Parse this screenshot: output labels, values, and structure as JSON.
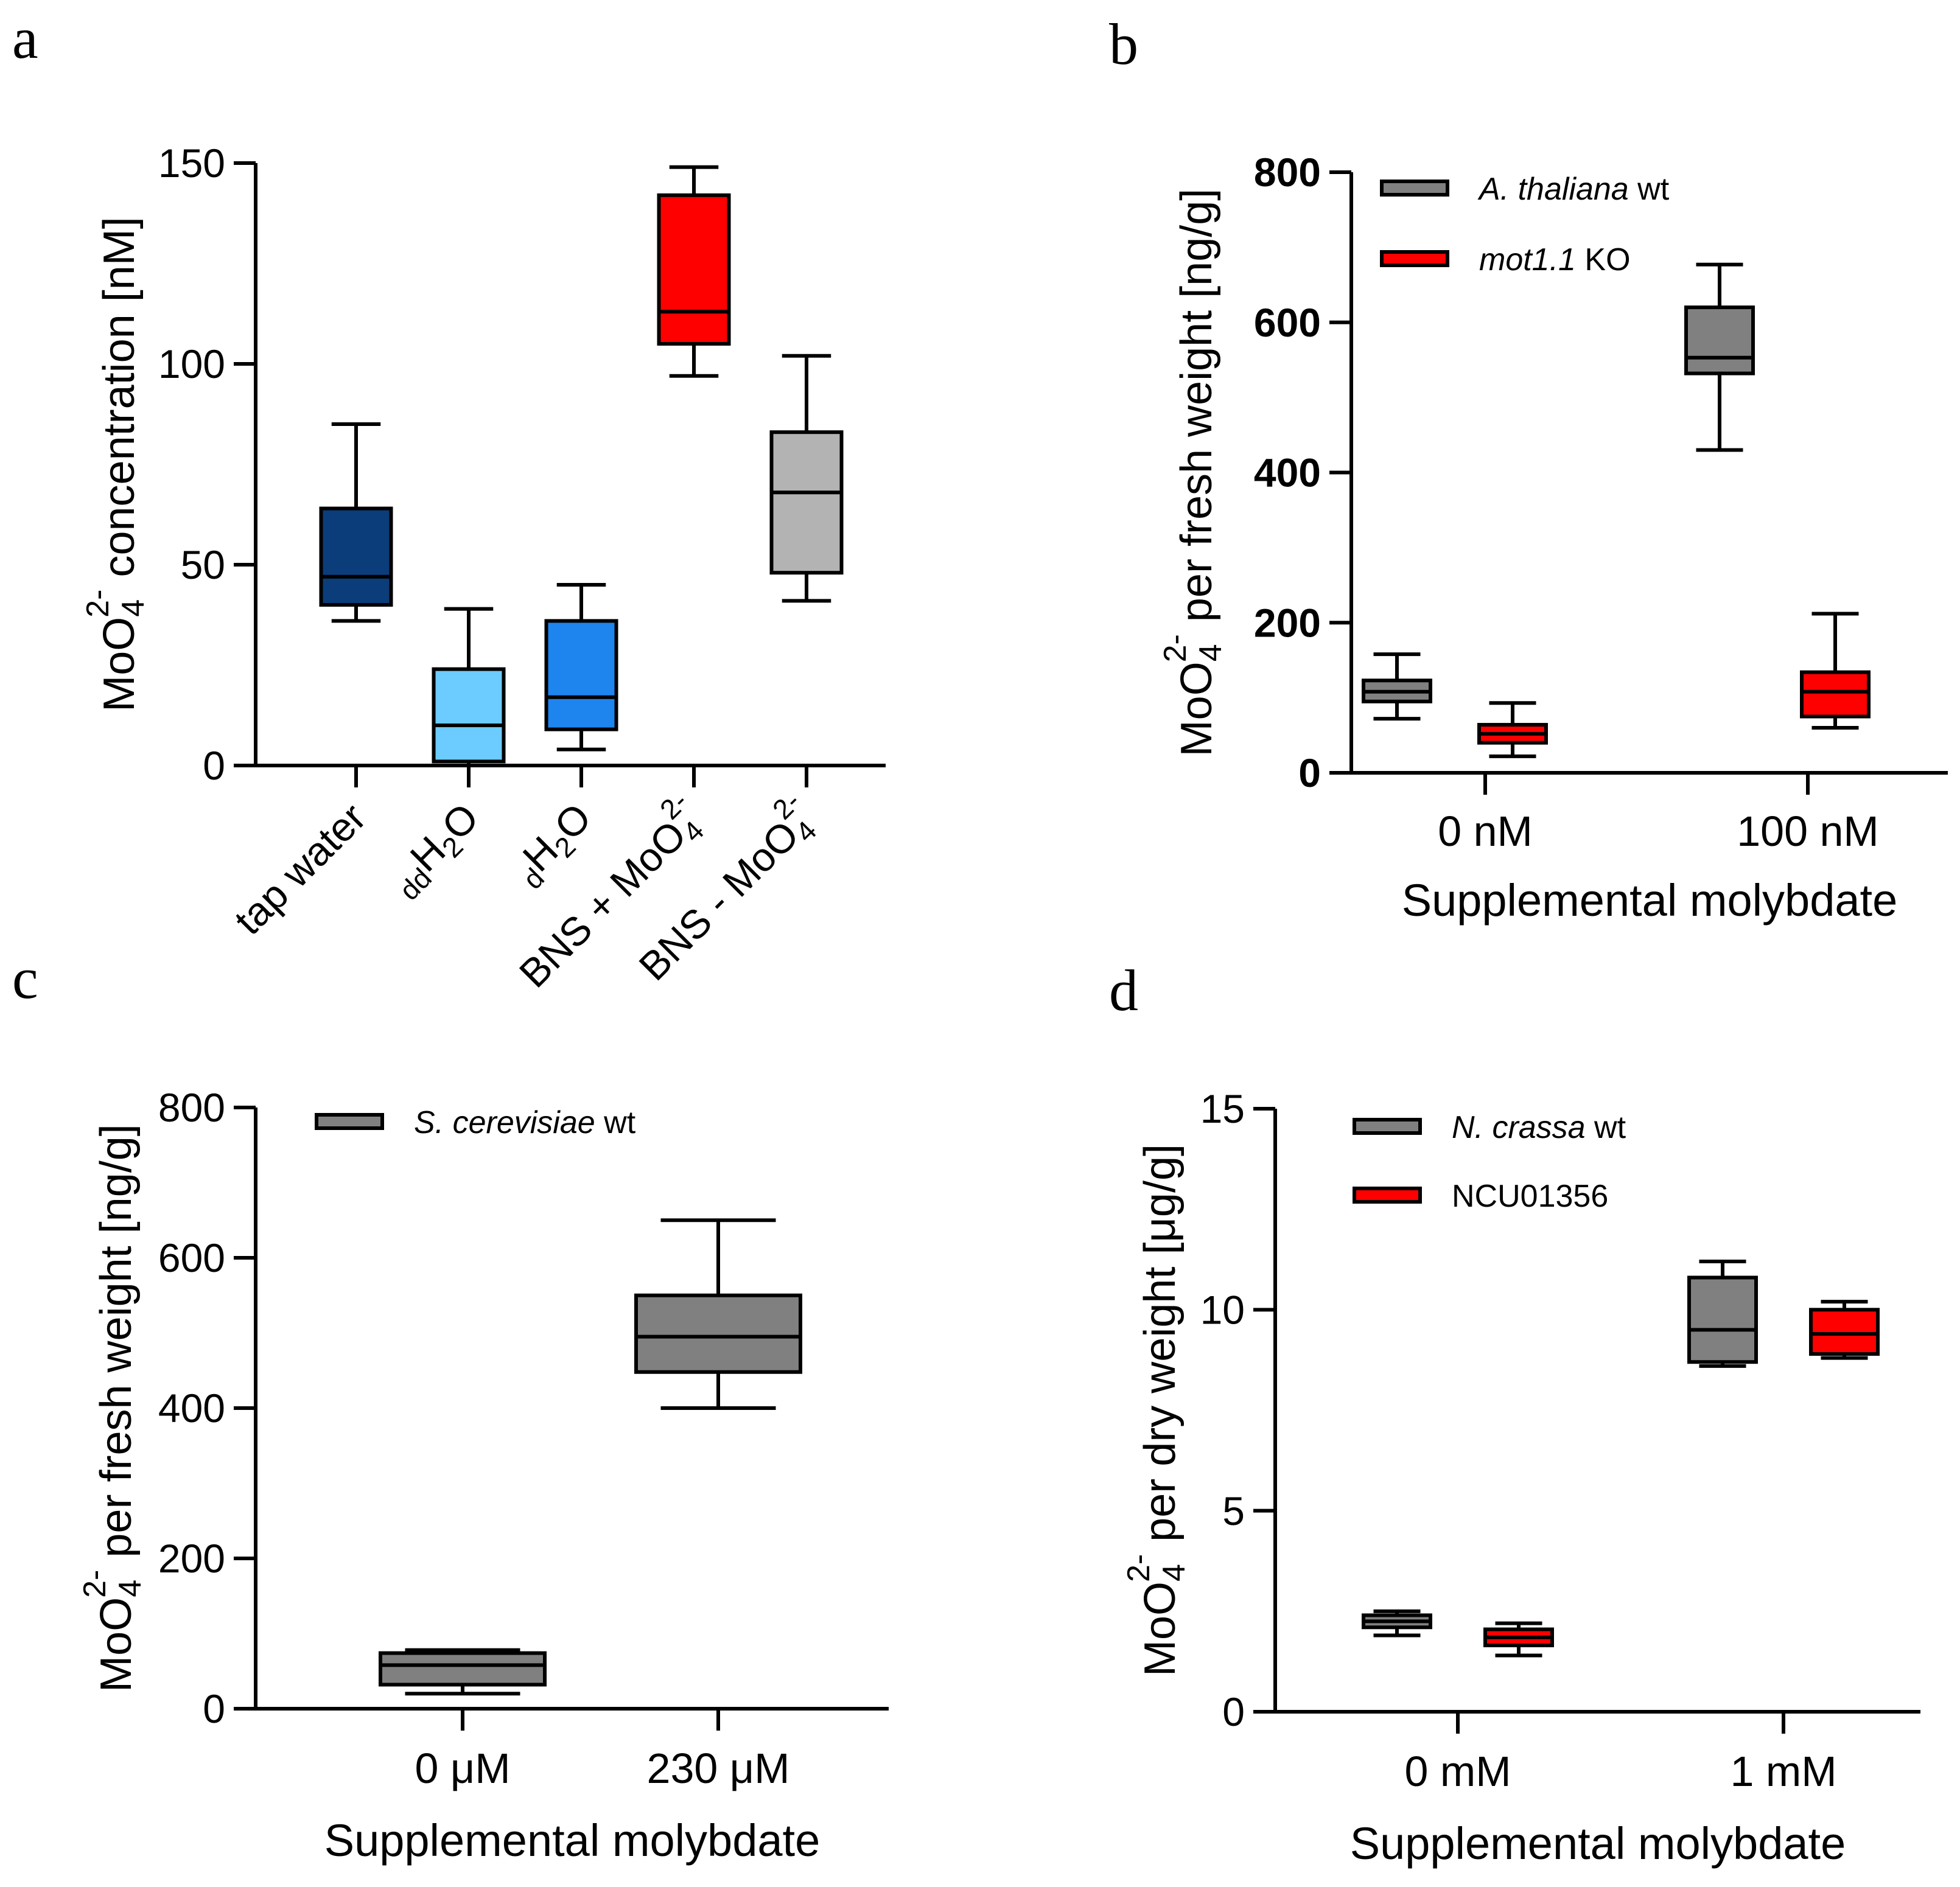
{
  "figure": {
    "panel_labels": [
      "a",
      "b",
      "c",
      "d"
    ]
  },
  "chart_data": [
    {
      "panel": "a",
      "type": "box",
      "ylabel": {
        "main": "MoO",
        "sub": "4",
        "sup": "2-",
        "rest": " concentration [nM]"
      },
      "ylim": [
        0,
        150
      ],
      "yticks": [
        "0",
        "50",
        "100",
        "150"
      ],
      "categories": [
        {
          "parts": [
            {
              "t": "tap water",
              "s": "n"
            }
          ]
        },
        {
          "parts": [
            {
              "t": "dd",
              "s": "sub"
            },
            {
              "t": "H",
              "s": "n"
            },
            {
              "t": "2",
              "s": "sub"
            },
            {
              "t": "O",
              "s": "n"
            }
          ]
        },
        {
          "parts": [
            {
              "t": "d",
              "s": "sub"
            },
            {
              "t": "H",
              "s": "n"
            },
            {
              "t": "2",
              "s": "sub"
            },
            {
              "t": "O",
              "s": "n"
            }
          ]
        },
        {
          "parts": [
            {
              "t": "BNS + MoO",
              "s": "n"
            },
            {
              "t": "4",
              "s": "sub"
            },
            {
              "t": "2-",
              "s": "sup"
            }
          ]
        },
        {
          "parts": [
            {
              "t": "BNS - MoO",
              "s": "n"
            },
            {
              "t": "4",
              "s": "sub"
            },
            {
              "t": "2-",
              "s": "sup"
            }
          ]
        }
      ],
      "boxes": [
        {
          "min": 36,
          "q1": 40,
          "median": 47,
          "q3": 64,
          "max": 85,
          "color": "#0a3d7a"
        },
        {
          "min": 0,
          "q1": 1,
          "median": 10,
          "q3": 24,
          "max": 39,
          "color": "#6ccbff"
        },
        {
          "min": 4,
          "q1": 9,
          "median": 17,
          "q3": 36,
          "max": 45,
          "color": "#1e84ee"
        },
        {
          "min": 97,
          "q1": 105,
          "median": 113,
          "q3": 142,
          "max": 149,
          "color": "#ff0000"
        },
        {
          "min": 41,
          "q1": 48,
          "median": 68,
          "q3": 83,
          "max": 102,
          "color": "#b3b3b3"
        }
      ]
    },
    {
      "panel": "b",
      "type": "box",
      "ylabel": {
        "main": "MoO",
        "sub": "4",
        "sup": "2-",
        "rest": " per fresh weight  [ng/g]"
      },
      "xlabel": "Supplemental molybdate",
      "ylim": [
        0,
        800
      ],
      "yticks": [
        "0",
        "200",
        "400",
        "600",
        "800"
      ],
      "categories": [
        "0 nM",
        "100 nM"
      ],
      "legend": [
        {
          "italic": "A. thaliana",
          "plain": " wt",
          "color": "#808080"
        },
        {
          "italic": "mot1.1",
          "plain": " KO",
          "color": "#ff0000"
        }
      ],
      "series": [
        {
          "name": "A. thaliana wt",
          "color": "#808080",
          "boxes": [
            {
              "min": 72,
              "q1": 95,
              "median": 108,
              "q3": 123,
              "max": 158
            },
            {
              "min": 430,
              "q1": 532,
              "median": 553,
              "q3": 620,
              "max": 677
            }
          ]
        },
        {
          "name": "mot1.1 KO",
          "color": "#ff0000",
          "boxes": [
            {
              "min": 22,
              "q1": 40,
              "median": 52,
              "q3": 64,
              "max": 93
            },
            {
              "min": 60,
              "q1": 75,
              "median": 108,
              "q3": 134,
              "max": 212
            }
          ]
        }
      ]
    },
    {
      "panel": "c",
      "type": "box",
      "ylabel": {
        "main": "MoO",
        "sub": "4",
        "sup": "2-",
        "rest": " per fresh weight  [ng/g]"
      },
      "xlabel": "Supplemental molybdate",
      "ylim": [
        0,
        800
      ],
      "yticks": [
        "0",
        "200",
        "400",
        "600",
        "800"
      ],
      "categories": [
        "0 μM",
        "230 μM"
      ],
      "legend": [
        {
          "italic": "S. cerevisiae",
          "plain": " wt",
          "color": "#808080"
        }
      ],
      "series": [
        {
          "name": "S. cerevisiae wt",
          "color": "#808080",
          "boxes": [
            {
              "min": 20,
              "q1": 32,
              "median": 58,
              "q3": 74,
              "max": 78
            },
            {
              "min": 400,
              "q1": 448,
              "median": 495,
              "q3": 550,
              "max": 650
            }
          ]
        }
      ]
    },
    {
      "panel": "d",
      "type": "box",
      "ylabel": {
        "main": "MoO",
        "sub": "4",
        "sup": "2-",
        "rest": " per dry weight  [μg/g]"
      },
      "xlabel": "Supplemental molybdate",
      "ylim": [
        0,
        15
      ],
      "yticks": [
        "0",
        "5",
        "10",
        "15"
      ],
      "categories": [
        "0 mM",
        "1 mM"
      ],
      "legend": [
        {
          "italic": "N. crassa",
          "plain": " wt",
          "color": "#808080"
        },
        {
          "italic": "",
          "plain": "NCU01356",
          "color": "#ff0000"
        }
      ],
      "series": [
        {
          "name": "N. crassa wt",
          "color": "#808080",
          "boxes": [
            {
              "min": 1.9,
              "q1": 2.1,
              "median": 2.25,
              "q3": 2.4,
              "max": 2.5
            },
            {
              "min": 8.6,
              "q1": 8.7,
              "median": 9.5,
              "q3": 10.8,
              "max": 11.2
            }
          ]
        },
        {
          "name": "NCU01356",
          "color": "#ff0000",
          "boxes": [
            {
              "min": 1.4,
              "q1": 1.65,
              "median": 1.85,
              "q3": 2.05,
              "max": 2.2
            },
            {
              "min": 8.8,
              "q1": 8.9,
              "median": 9.4,
              "q3": 10.0,
              "max": 10.2
            }
          ]
        }
      ]
    }
  ]
}
